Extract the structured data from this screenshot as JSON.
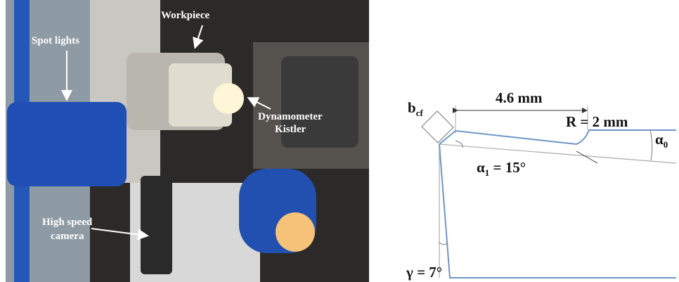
{
  "photo": {
    "labels": {
      "workpiece": "Workpiece",
      "spot_lights": "Spot lights",
      "dynamometer": "Dynamometer",
      "kistler": "Kistler",
      "high_speed_camera": [
        "High speed",
        "camera"
      ]
    }
  },
  "diagram": {
    "chamfer": {
      "symbol": "b",
      "subscript": "cf"
    },
    "length": "4.6 mm",
    "radius": "R = 2 mm",
    "clearance_angle": {
      "symbol": "α",
      "subscript": "0"
    },
    "land_angle": {
      "symbol": "α",
      "subscript": "1",
      "value": " = 15°"
    },
    "rake_angle": "γ = 7°"
  }
}
